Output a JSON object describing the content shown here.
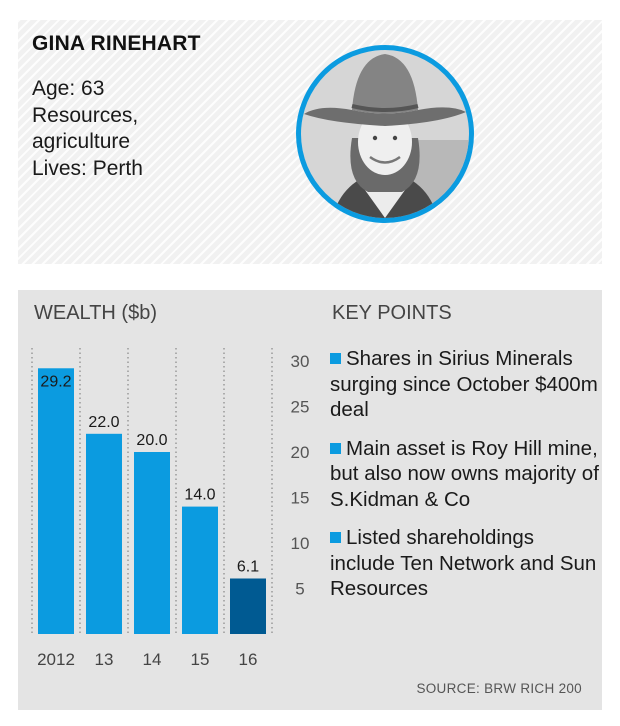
{
  "profile": {
    "name": "GINA RINEHART",
    "lines": [
      "Age: 63",
      "Resources,",
      "agriculture",
      "Lives: Perth"
    ]
  },
  "wealth_title": "WEALTH ($b)",
  "key_points": {
    "title": "KEY POINTS",
    "items": [
      "Shares in Sirius Minerals surging since October $400m deal",
      "Main asset is Roy Hill mine, but also now owns majority of S.Kidman & Co",
      "Listed shareholdings include Ten Network and Sun Resources"
    ]
  },
  "source": "SOURCE: BRW RICH 200",
  "colors": {
    "bar": "#0b9be0",
    "bar_highlight": "#005a92",
    "portrait_ring": "#0b9be0"
  },
  "icons": {
    "portrait": "person-in-hat-photo"
  },
  "chart_data": {
    "type": "bar",
    "title": "WEALTH ($b)",
    "categories": [
      "2012",
      "13",
      "14",
      "15",
      "16"
    ],
    "values": [
      29.2,
      22.0,
      20.0,
      14.0,
      6.1
    ],
    "value_labels": [
      "29.2",
      "22.0",
      "20.0",
      "14.0",
      "6.1"
    ],
    "ylim": [
      0,
      30
    ],
    "yticks": [
      5,
      10,
      15,
      20,
      25,
      30
    ],
    "y_axis_side": "right",
    "grid": "vertical dotted",
    "highlight_category": "16",
    "xlabel": "",
    "ylabel": ""
  }
}
